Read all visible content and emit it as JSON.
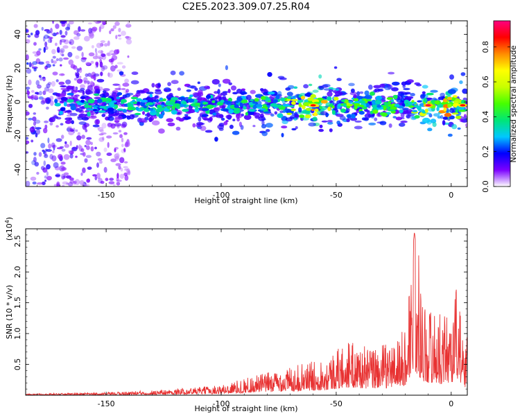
{
  "figure": {
    "title": "C2E5.2023.309.07.25.R04"
  },
  "chart_data": [
    {
      "type": "heatmap",
      "xlabel": "Height of straight line (km)",
      "ylabel": "Frequency (Hz)",
      "xlim": [
        -185,
        7
      ],
      "ylim": [
        -50,
        48
      ],
      "xticks": [
        -150,
        -100,
        -50,
        0
      ],
      "yticks": [
        -40,
        -20,
        0,
        20,
        40
      ],
      "colorbar": {
        "label": "Normalized spectral amplitude",
        "range": [
          0.0,
          0.95
        ],
        "ticks": [
          0.0,
          0.2,
          0.4,
          0.6,
          0.8
        ],
        "tick_labels": [
          "0.0",
          "0.2",
          "0.4",
          "0.6",
          "0.8"
        ],
        "colors": [
          "#ffffff",
          "#7b00ff",
          "#0000ff",
          "#00c8ff",
          "#00e676",
          "#46ff00",
          "#c8ff00",
          "#ffff00",
          "#ff8c00",
          "#ff0000",
          "#ff0080"
        ]
      },
      "band": {
        "center_freq_hz": -2,
        "width_hz": 8,
        "x_start_km": -172,
        "x_end_km": 7,
        "amplitude_profile": [
          {
            "x": -172,
            "amp": 0.3
          },
          {
            "x": -150,
            "amp": 0.38
          },
          {
            "x": -100,
            "amp": 0.4
          },
          {
            "x": -75,
            "amp": 0.45
          },
          {
            "x": -60,
            "amp": 0.75
          },
          {
            "x": -40,
            "amp": 0.45
          },
          {
            "x": -20,
            "amp": 0.45
          },
          {
            "x": -10,
            "amp": 0.65
          },
          {
            "x": 0,
            "amp": 0.75
          },
          {
            "x": 7,
            "amp": 0.35
          }
        ],
        "features": [
          {
            "x": -60,
            "freq": -2,
            "amp": 0.85
          },
          {
            "x": -10,
            "freq": -2,
            "amp": 0.9
          },
          {
            "x": 5,
            "freq": -2,
            "amp": 0.85
          }
        ]
      },
      "scatter_region": {
        "x_range": [
          -185,
          -140
        ],
        "freq_range": [
          -50,
          48
        ],
        "amp": 0.2
      }
    },
    {
      "type": "line",
      "xlabel": "Height of straight line (km)",
      "ylabel": "SNR (10 * v/v)",
      "y_multiplier_label": "(x10",
      "y_multiplier_exp": "4",
      "y_multiplier_close": ")",
      "xlim": [
        -185,
        7
      ],
      "ylim": [
        0,
        27000
      ],
      "xticks": [
        -150,
        -100,
        -50,
        0
      ],
      "yticks": [
        5000,
        10000,
        15000,
        20000,
        25000
      ],
      "ytick_labels": [
        "0.5",
        "1.0",
        "1.5",
        "2.0",
        "2.5"
      ],
      "series": [
        {
          "color": "#e83232",
          "envelope": [
            {
              "x": -185,
              "y": 200
            },
            {
              "x": -150,
              "y": 400
            },
            {
              "x": -120,
              "y": 900
            },
            {
              "x": -100,
              "y": 1500
            },
            {
              "x": -85,
              "y": 3000
            },
            {
              "x": -70,
              "y": 4200
            },
            {
              "x": -55,
              "y": 5500
            },
            {
              "x": -45,
              "y": 8000
            },
            {
              "x": -35,
              "y": 7000
            },
            {
              "x": -25,
              "y": 8000
            },
            {
              "x": -20,
              "y": 10000
            },
            {
              "x": -16,
              "y": 26500
            },
            {
              "x": -12,
              "y": 14000
            },
            {
              "x": -5,
              "y": 12000
            },
            {
              "x": 0,
              "y": 13000
            },
            {
              "x": 3,
              "y": 18000
            },
            {
              "x": 5,
              "y": 8000
            },
            {
              "x": 7,
              "y": 9000
            }
          ]
        }
      ]
    }
  ]
}
